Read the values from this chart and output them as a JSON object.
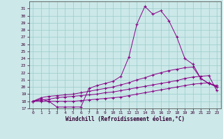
{
  "xlabel": "Windchill (Refroidissement éolien,°C)",
  "bg_color": "#cce8e8",
  "line_color": "#880088",
  "grid_color": "#99cccc",
  "xlim": [
    -0.5,
    23.5
  ],
  "ylim": [
    17,
    32
  ],
  "yticks": [
    17,
    18,
    19,
    20,
    21,
    22,
    23,
    24,
    25,
    26,
    27,
    28,
    29,
    30,
    31
  ],
  "xticks": [
    0,
    1,
    2,
    3,
    4,
    5,
    6,
    7,
    8,
    9,
    10,
    11,
    12,
    13,
    14,
    15,
    16,
    17,
    18,
    19,
    20,
    21,
    22,
    23
  ],
  "line1_x": [
    0,
    1,
    2,
    3,
    4,
    5,
    6,
    7,
    8,
    9,
    10,
    11,
    12,
    13,
    14,
    15,
    16,
    17,
    18,
    19,
    20,
    21,
    22,
    23
  ],
  "line1_y": [
    18.0,
    18.3,
    18.0,
    17.2,
    17.2,
    17.2,
    17.2,
    19.8,
    20.2,
    20.5,
    20.8,
    21.5,
    24.2,
    28.8,
    31.3,
    30.2,
    30.7,
    29.3,
    27.0,
    24.0,
    23.2,
    21.2,
    20.5,
    20.0
  ],
  "line2_x": [
    0,
    1,
    2,
    3,
    4,
    5,
    6,
    7,
    8,
    9,
    10,
    11,
    12,
    13,
    14,
    15,
    16,
    17,
    18,
    19,
    20,
    21,
    22,
    23
  ],
  "line2_y": [
    18.0,
    18.5,
    18.7,
    18.8,
    18.9,
    19.0,
    19.2,
    19.4,
    19.6,
    19.8,
    20.0,
    20.3,
    20.6,
    21.0,
    21.3,
    21.7,
    22.0,
    22.3,
    22.5,
    22.7,
    22.8,
    21.2,
    20.5,
    20.2
  ],
  "line3_x": [
    0,
    1,
    2,
    3,
    4,
    5,
    6,
    7,
    8,
    9,
    10,
    11,
    12,
    13,
    14,
    15,
    16,
    17,
    18,
    19,
    20,
    21,
    22,
    23
  ],
  "line3_y": [
    18.0,
    18.2,
    18.3,
    18.5,
    18.6,
    18.7,
    18.8,
    18.9,
    19.0,
    19.2,
    19.3,
    19.5,
    19.7,
    19.9,
    20.1,
    20.3,
    20.5,
    20.7,
    20.9,
    21.2,
    21.4,
    21.5,
    21.6,
    19.5
  ],
  "line4_x": [
    0,
    1,
    2,
    3,
    4,
    5,
    6,
    7,
    8,
    9,
    10,
    11,
    12,
    13,
    14,
    15,
    16,
    17,
    18,
    19,
    20,
    21,
    22,
    23
  ],
  "line4_y": [
    18.0,
    18.0,
    18.0,
    18.0,
    18.0,
    18.0,
    18.1,
    18.2,
    18.3,
    18.4,
    18.5,
    18.6,
    18.8,
    19.0,
    19.2,
    19.4,
    19.6,
    19.8,
    20.0,
    20.2,
    20.4,
    20.5,
    20.6,
    20.0
  ]
}
